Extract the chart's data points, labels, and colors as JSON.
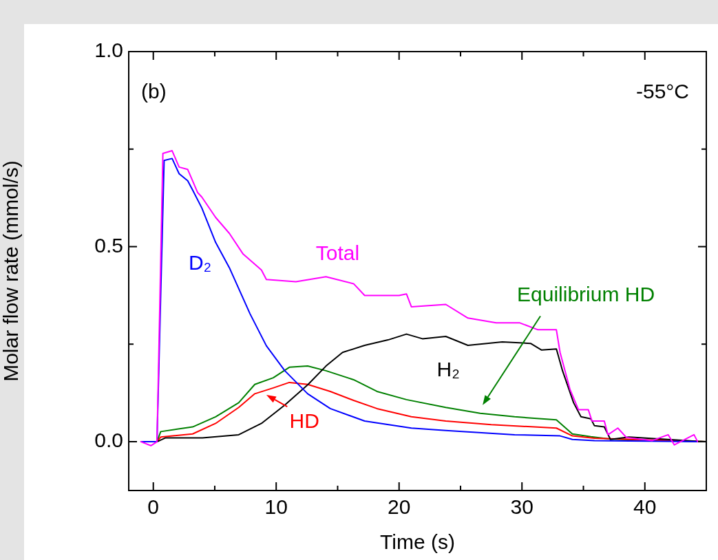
{
  "chart_data": {
    "type": "line",
    "xlabel": "Time (s)",
    "ylabel": "Molar flow rate (mmol/s)",
    "annotations": [
      "(b)",
      "-55°C"
    ],
    "xlim": [
      -2,
      45
    ],
    "ylim": [
      -0.125,
      1.0
    ],
    "xticks": [
      0,
      {
        "value": 5,
        "label": null
      },
      10,
      {
        "value": 15,
        "label": null
      },
      20,
      {
        "value": 25,
        "label": null
      },
      30,
      {
        "value": 35,
        "label": null
      },
      40
    ],
    "yticks": [
      {
        "value": 0,
        "label": "0.0"
      },
      {
        "value": 0.25,
        "label": null
      },
      {
        "value": 0.5,
        "label": "0.5"
      },
      {
        "value": 0.75,
        "label": null
      },
      {
        "value": 1,
        "label": "1.0"
      }
    ],
    "marker": "none",
    "line_style": "solid",
    "series": [
      {
        "name": "Total",
        "color": "#ff00ff",
        "x": [
          -1,
          -0.2,
          0.3,
          0.78,
          1.53,
          2.1,
          2.8,
          3.6,
          3.95,
          5.07,
          6.19,
          7.31,
          8.8,
          9.2,
          11.6,
          14.05,
          16.3,
          17.2,
          20.0,
          20.6,
          21.0,
          23.8,
          25.6,
          27.9,
          29.8,
          31.3,
          32.8,
          33.1,
          33.9,
          34.6,
          35.4,
          35.7,
          36.7,
          37.0,
          37.8,
          38.5,
          40.6,
          41.9,
          42.4,
          44,
          44.3
        ],
        "values": [
          0,
          -0.01,
          0,
          0.739,
          0.746,
          0.704,
          0.698,
          0.639,
          0.627,
          0.575,
          0.534,
          0.481,
          0.44,
          0.416,
          0.41,
          0.423,
          0.405,
          0.375,
          0.375,
          0.379,
          0.346,
          0.352,
          0.317,
          0.305,
          0.305,
          0.287,
          0.287,
          0.229,
          0.135,
          0.082,
          0.082,
          0.053,
          0.053,
          0.018,
          0.035,
          0.011,
          0.003,
          0.018,
          -0.008,
          0.018,
          0
        ]
      },
      {
        "name": "D₂",
        "color": "#0000ff",
        "x": [
          -1,
          0.3,
          0.88,
          1.53,
          2.1,
          2.8,
          3.2,
          3.95,
          5.07,
          6.19,
          7.87,
          9.2,
          10.7,
          12.56,
          14.4,
          17.2,
          21,
          23.8,
          29.4,
          33.1,
          34.1,
          35.9,
          45
        ],
        "values": [
          0,
          0,
          0.721,
          0.726,
          0.687,
          0.669,
          0.645,
          0.599,
          0.511,
          0.446,
          0.328,
          0.246,
          0.182,
          0.123,
          0.085,
          0.053,
          0.035,
          0.029,
          0.018,
          0.015,
          0.006,
          0.003,
          0
        ]
      },
      {
        "name": "H₂",
        "color": "#000000",
        "x": [
          -1,
          0.3,
          1,
          4,
          6.95,
          8.8,
          10.7,
          12.6,
          14.05,
          15.4,
          17.2,
          19.1,
          20.6,
          21.9,
          23.8,
          25.6,
          28.4,
          30.7,
          31.6,
          32.8,
          33.3,
          34.2,
          34.8,
          35.6,
          35.9,
          36.7,
          37.2,
          38.7,
          45
        ],
        "values": [
          0,
          0,
          0.01,
          0.01,
          0.018,
          0.047,
          0.094,
          0.147,
          0.194,
          0.229,
          0.247,
          0.261,
          0.276,
          0.264,
          0.27,
          0.247,
          0.256,
          0.252,
          0.235,
          0.238,
          0.182,
          0.1,
          0.064,
          0.059,
          0.041,
          0.038,
          0.006,
          0.012,
          0
        ]
      },
      {
        "name": "HD",
        "color": "#ff0000",
        "x": [
          -1,
          0.3,
          0.6,
          3.2,
          5.07,
          6.95,
          8.26,
          9.76,
          11.07,
          12.56,
          14.4,
          16.3,
          18.2,
          21.0,
          23.8,
          27.5,
          32.8,
          34.1,
          35.9,
          45
        ],
        "values": [
          0,
          0,
          0.012,
          0.02,
          0.047,
          0.088,
          0.123,
          0.138,
          0.152,
          0.147,
          0.129,
          0.106,
          0.085,
          0.064,
          0.053,
          0.044,
          0.035,
          0.015,
          0.009,
          0
        ]
      },
      {
        "name": "Equilibrium HD",
        "color": "#008000",
        "x": [
          -1,
          0.3,
          0.6,
          3.2,
          5.07,
          6.95,
          8.26,
          9.76,
          11.07,
          12.56,
          14.05,
          16.3,
          18.2,
          20.6,
          23.8,
          26.6,
          29.4,
          32.8,
          34.1,
          35.6,
          37.2,
          45
        ],
        "values": [
          0,
          0,
          0.026,
          0.038,
          0.064,
          0.1,
          0.147,
          0.164,
          0.191,
          0.194,
          0.182,
          0.159,
          0.129,
          0.108,
          0.088,
          0.073,
          0.064,
          0.056,
          0.02,
          0.013,
          0.007,
          0
        ]
      }
    ]
  }
}
